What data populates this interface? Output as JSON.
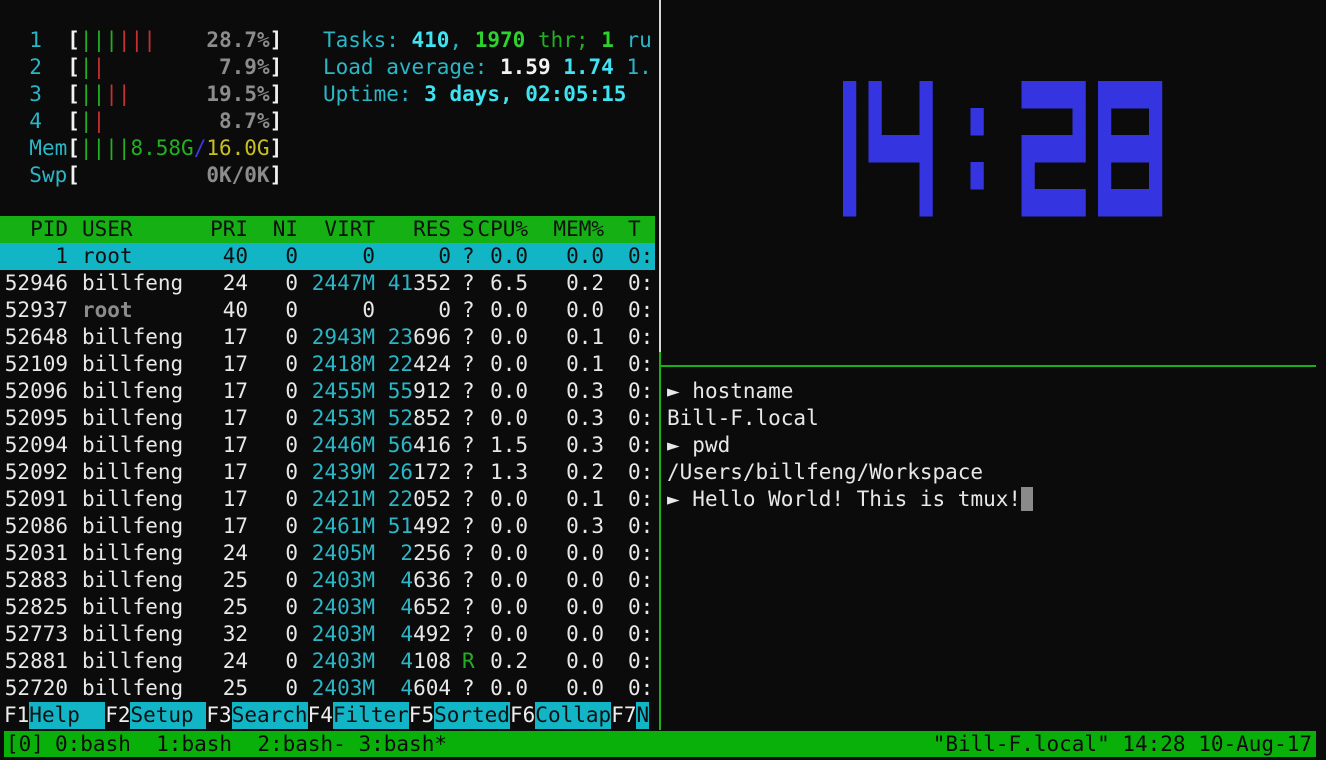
{
  "htop": {
    "cpus": [
      {
        "id": "1",
        "bars": [
          "g",
          "g",
          "g",
          "r",
          "r",
          "r"
        ],
        "value": "28.7%"
      },
      {
        "id": "2",
        "bars": [
          "g",
          "r"
        ],
        "value": "7.9%"
      },
      {
        "id": "3",
        "bars": [
          "g",
          "g",
          "r",
          "r"
        ],
        "value": "19.5%"
      },
      {
        "id": "4",
        "bars": [
          "g",
          "r"
        ],
        "value": "8.7%"
      }
    ],
    "mem": {
      "label": "Mem",
      "bars": "||||",
      "used": "8.58G",
      "sep": "/",
      "total": "16.0G"
    },
    "swp": {
      "label": "Swp",
      "value": "0K/0K"
    },
    "tasks": {
      "label": "Tasks: ",
      "count": "410",
      "sep": ", ",
      "threads": "1970",
      "thr": " thr; ",
      "running": "1",
      "ru": " ru"
    },
    "load": {
      "label": "Load average: ",
      "l1": "1.59",
      "l5": "1.74",
      "l15": "1."
    },
    "uptime": {
      "label": "Uptime: ",
      "value": "3 days, 02:05:15"
    },
    "columns": [
      "PID",
      "USER",
      "PRI",
      "NI",
      "VIRT",
      "RES",
      "S",
      "CPU%",
      "MEM%",
      "T"
    ],
    "processes": [
      [
        "1",
        "root",
        "40",
        "0",
        "0",
        "0",
        "?",
        "0.0",
        "0.0",
        "0:"
      ],
      [
        "52946",
        "billfeng",
        "24",
        "0",
        "2447M",
        "41352",
        "?",
        "6.5",
        "0.2",
        "0:"
      ],
      [
        "52937",
        "root",
        "40",
        "0",
        "0",
        "0",
        "?",
        "0.0",
        "0.0",
        "0:"
      ],
      [
        "52648",
        "billfeng",
        "17",
        "0",
        "2943M",
        "23696",
        "?",
        "0.0",
        "0.1",
        "0:"
      ],
      [
        "52109",
        "billfeng",
        "17",
        "0",
        "2418M",
        "22424",
        "?",
        "0.0",
        "0.1",
        "0:"
      ],
      [
        "52096",
        "billfeng",
        "17",
        "0",
        "2455M",
        "55912",
        "?",
        "0.0",
        "0.3",
        "0:"
      ],
      [
        "52095",
        "billfeng",
        "17",
        "0",
        "2453M",
        "52852",
        "?",
        "0.0",
        "0.3",
        "0:"
      ],
      [
        "52094",
        "billfeng",
        "17",
        "0",
        "2446M",
        "56416",
        "?",
        "1.5",
        "0.3",
        "0:"
      ],
      [
        "52092",
        "billfeng",
        "17",
        "0",
        "2439M",
        "26172",
        "?",
        "1.3",
        "0.2",
        "0:"
      ],
      [
        "52091",
        "billfeng",
        "17",
        "0",
        "2421M",
        "22052",
        "?",
        "0.0",
        "0.1",
        "0:"
      ],
      [
        "52086",
        "billfeng",
        "17",
        "0",
        "2461M",
        "51492",
        "?",
        "0.0",
        "0.3",
        "0:"
      ],
      [
        "52031",
        "billfeng",
        "24",
        "0",
        "2405M",
        "2256",
        "?",
        "0.0",
        "0.0",
        "0:"
      ],
      [
        "52883",
        "billfeng",
        "25",
        "0",
        "2403M",
        "4636",
        "?",
        "0.0",
        "0.0",
        "0:"
      ],
      [
        "52825",
        "billfeng",
        "25",
        "0",
        "2403M",
        "4652",
        "?",
        "0.0",
        "0.0",
        "0:"
      ],
      [
        "52773",
        "billfeng",
        "32",
        "0",
        "2403M",
        "4492",
        "?",
        "0.0",
        "0.0",
        "0:"
      ],
      [
        "52881",
        "billfeng",
        "24",
        "0",
        "2403M",
        "4108",
        "R",
        "0.2",
        "0.0",
        "0:"
      ],
      [
        "52720",
        "billfeng",
        "25",
        "0",
        "2403M",
        "4604",
        "?",
        "0.0",
        "0.0",
        "0:"
      ]
    ],
    "selected_index": 0,
    "fkeys": [
      {
        "key": "F1",
        "label": "Help  "
      },
      {
        "key": "F2",
        "label": "Setup "
      },
      {
        "key": "F3",
        "label": "Search"
      },
      {
        "key": "F4",
        "label": "Filter"
      },
      {
        "key": "F5",
        "label": "Sorted"
      },
      {
        "key": "F6",
        "label": "Collap"
      },
      {
        "key": "F7",
        "label": "N"
      }
    ]
  },
  "clock": {
    "time": "14:28",
    "color": "#3434e0"
  },
  "shell": {
    "lines": [
      {
        "prompt": "► ",
        "text": "hostname"
      },
      {
        "prompt": "",
        "text": "Bill-F.local"
      },
      {
        "prompt": "► ",
        "text": "pwd"
      },
      {
        "prompt": "",
        "text": "/Users/billfeng/Workspace"
      },
      {
        "prompt": "► ",
        "text": "Hello World! This is tmux!"
      }
    ]
  },
  "status": {
    "session": "[0]",
    "windows": [
      "0:bash",
      "1:bash",
      "2:bash-",
      "3:bash*"
    ],
    "right": "\"Bill-F.local\" 14:28 10-Aug-17",
    "color": "#0ab00a"
  }
}
